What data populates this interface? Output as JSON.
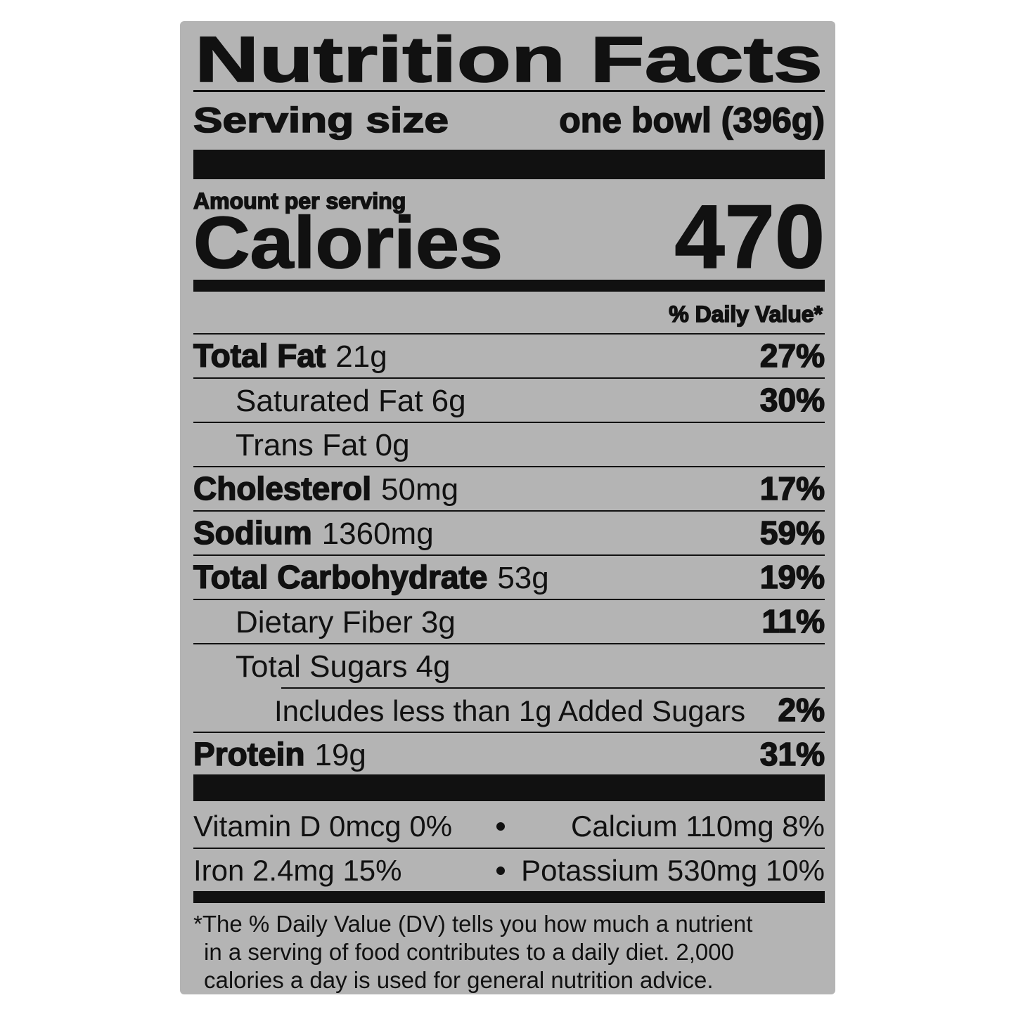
{
  "title": "Nutrition Facts",
  "serving": {
    "label": "Serving size",
    "value": "one bowl (396g)"
  },
  "amount_per_serving": "Amount per serving",
  "calories": {
    "label": "Calories",
    "value": "470"
  },
  "daily_value_header": "% Daily Value*",
  "rows": [
    {
      "name": "Total Fat",
      "amount": "21g",
      "dv": "27%",
      "indent": 0
    },
    {
      "name": "Saturated Fat",
      "amount": "6g",
      "dv": "30%",
      "indent": 1
    },
    {
      "name": "Trans Fat",
      "amount": "0g",
      "dv": null,
      "indent": 1
    },
    {
      "name": "Cholesterol",
      "amount": "50mg",
      "dv": "17%",
      "indent": 0
    },
    {
      "name": "Sodium",
      "amount": "1360mg",
      "dv": "59%",
      "indent": 0
    },
    {
      "name": "Total Carbohydrate",
      "amount": "53g",
      "dv": "19%",
      "indent": 0
    },
    {
      "name": "Dietary Fiber",
      "amount": "3g",
      "dv": "11%",
      "indent": 1
    },
    {
      "name": "Total Sugars",
      "amount": "4g",
      "dv": null,
      "indent": 1
    },
    {
      "name": "Includes less than 1g Added Sugars",
      "amount": null,
      "dv": "2%",
      "indent": 2
    },
    {
      "name": "Protein",
      "amount": "19g",
      "dv": "31%",
      "indent": 0
    }
  ],
  "micronutrients": [
    [
      "Vitamin D 0mcg 0%",
      "Calcium 110mg 8%"
    ],
    [
      "Iron 2.4mg 15%",
      "Potassium 530mg 10%"
    ]
  ],
  "footnote": [
    "*The % Daily Value (DV) tells you how much a nutrient",
    "in a serving of food contributes to a daily diet. 2,000",
    "calories a day is used for general nutrition advice."
  ]
}
